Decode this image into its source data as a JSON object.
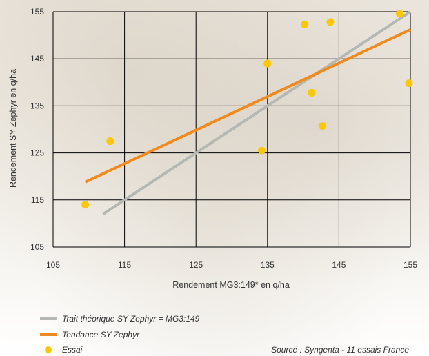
{
  "chart_data": {
    "type": "scatter",
    "title": "",
    "xlabel": "Rendement MG3:149* en q/ha",
    "ylabel": "Rendement SY Zephyr en q/ha",
    "xlim": [
      105,
      155
    ],
    "ylim": [
      105,
      155
    ],
    "xticks": [
      "105",
      "115",
      "125",
      "135",
      "145",
      "155"
    ],
    "yticks": [
      "105",
      "115",
      "125",
      "135",
      "145",
      "155"
    ],
    "grid": true,
    "legend_position": "bottom-left",
    "series": [
      {
        "name": "Trait théorique SY Zephyr = MG3:149",
        "type": "line",
        "color": "#b5b7b2",
        "x": [
          112,
          155
        ],
        "y": [
          112,
          155
        ]
      },
      {
        "name": "Tendance SY Zephyr",
        "type": "line",
        "color": "#f08a1c",
        "x": [
          109.5,
          155
        ],
        "y": [
          118.8,
          151.2
        ]
      },
      {
        "name": "Essai",
        "type": "scatter",
        "color": "#fcc800",
        "x": [
          109.5,
          113,
          134.2,
          135,
          140.2,
          141.2,
          142.7,
          143.8,
          153.5,
          154.8
        ],
        "y": [
          114,
          127.5,
          125.5,
          144,
          152.3,
          137.8,
          130.7,
          152.8,
          154.6,
          139.8
        ]
      }
    ],
    "source": "Source : Syngenta - 11 essais France"
  }
}
